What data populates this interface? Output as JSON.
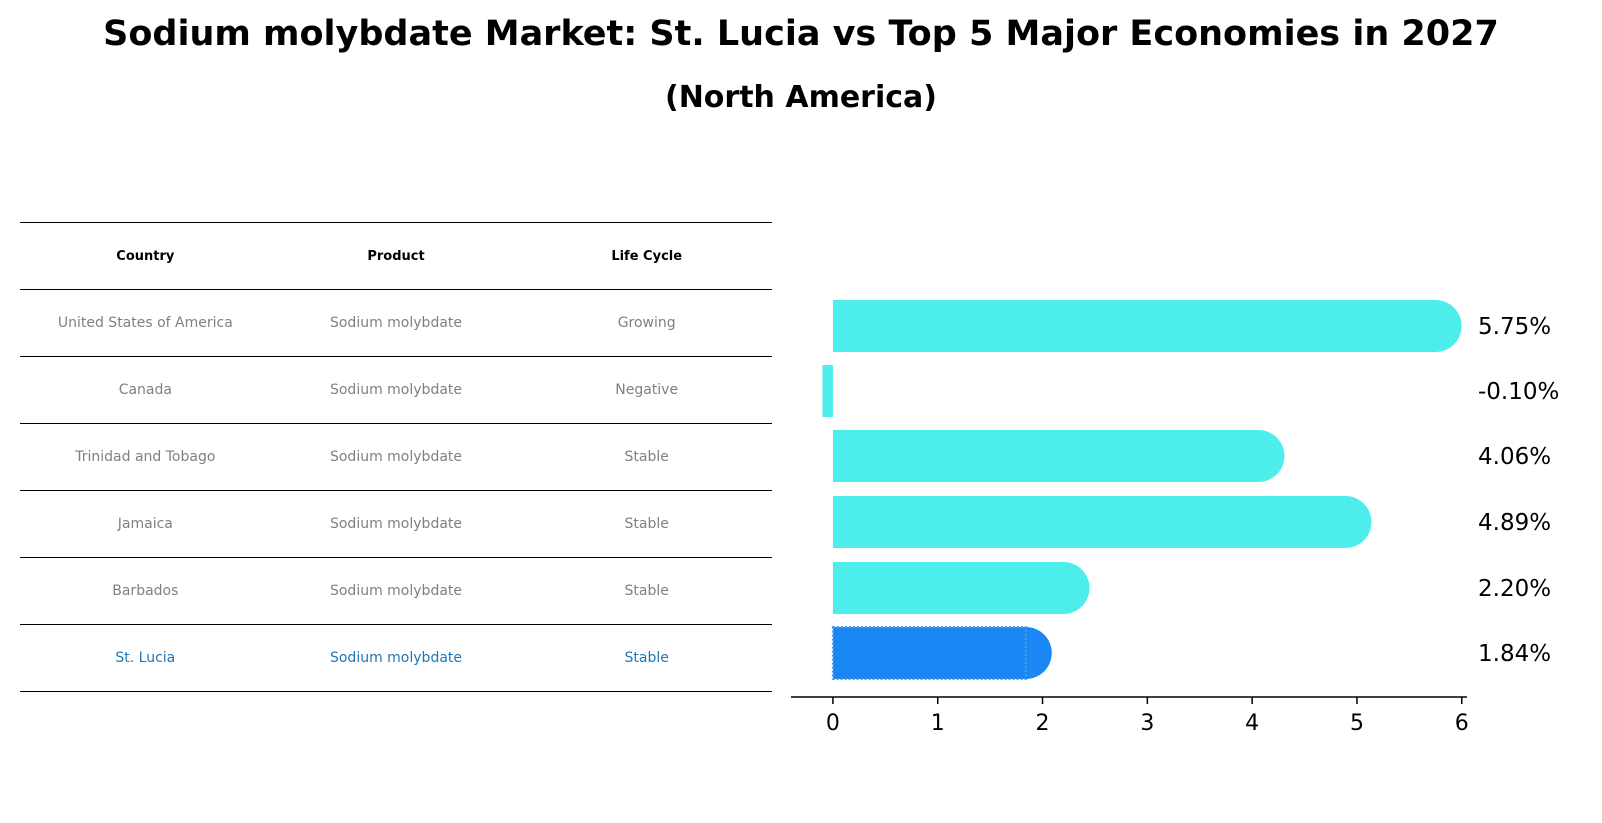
{
  "title": "Sodium molybdate Market: St. Lucia vs Top 5 Major Economies in 2027",
  "subtitle": "(North America)",
  "table": {
    "headers": [
      "Country",
      "Product",
      "Life Cycle"
    ],
    "rows": [
      [
        "United States of America",
        "Sodium molybdate",
        "Growing"
      ],
      [
        "Canada",
        "Sodium molybdate",
        "Negative"
      ],
      [
        "Trinidad and Tobago",
        "Sodium molybdate",
        "Stable"
      ],
      [
        "Jamaica",
        "Sodium molybdate",
        "Stable"
      ],
      [
        "Barbados",
        "Sodium molybdate",
        "Stable"
      ],
      [
        "St. Lucia",
        "Sodium molybdate",
        "Stable"
      ]
    ],
    "highlight_row": 5
  },
  "chart_data": {
    "type": "bar",
    "orientation": "horizontal",
    "categories": [
      "United States of America",
      "Canada",
      "Trinidad and Tobago",
      "Jamaica",
      "Barbados",
      "St. Lucia"
    ],
    "values": [
      5.75,
      -0.1,
      4.06,
      4.89,
      2.2,
      1.84
    ],
    "value_labels": [
      "5.75%",
      "-0.10%",
      "4.06%",
      "4.89%",
      "2.20%",
      "1.84%"
    ],
    "xlim": [
      -0.4,
      6.05
    ],
    "xticks": [
      0,
      1,
      2,
      3,
      4,
      5,
      6
    ],
    "highlight_index": 5,
    "colors": {
      "bar": "#4DEDEB",
      "highlight": "#1A87F5",
      "highlight_edge": "#4D9BE6"
    }
  }
}
